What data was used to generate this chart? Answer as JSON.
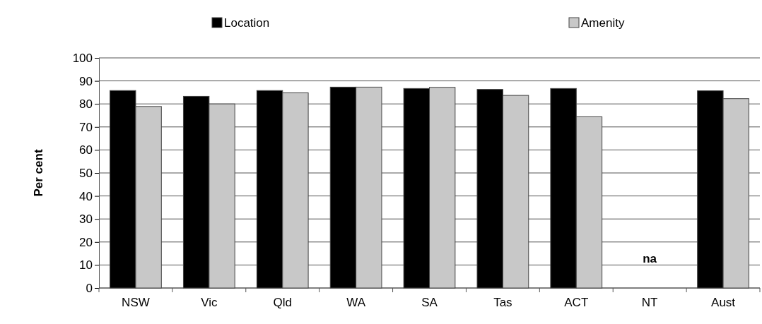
{
  "chart_data": {
    "type": "bar",
    "ylabel": "Per cent",
    "categories": [
      "NSW",
      "Vic",
      "Qld",
      "WA",
      "SA",
      "Tas",
      "ACT",
      "NT",
      "Aust"
    ],
    "series": [
      {
        "name": "Location",
        "color": "#000000",
        "values": [
          85.8,
          83.3,
          85.8,
          87.3,
          86.7,
          86.3,
          86.7,
          null,
          85.7
        ]
      },
      {
        "name": "Amenity",
        "color": "#c8c8c8",
        "values": [
          78.9,
          80.0,
          84.8,
          87.3,
          87.2,
          83.7,
          74.4,
          null,
          82.3
        ]
      }
    ],
    "ylim": [
      0,
      100
    ],
    "yticks": [
      0,
      10,
      20,
      30,
      40,
      50,
      60,
      70,
      80,
      90,
      100
    ],
    "grid": "y",
    "legend": "top",
    "annotations": [
      "na"
    ]
  }
}
